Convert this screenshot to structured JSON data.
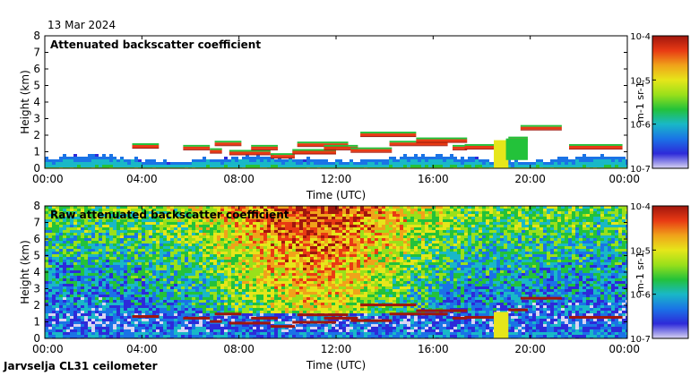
{
  "date": "13 Mar 2024",
  "footer": "Jarvselja CL31 ceilometer",
  "chart_data": [
    {
      "type": "heatmap",
      "title": "Attenuated backscatter coefficient",
      "xlabel": "Time (UTC)",
      "ylabel": "Height (km)",
      "xlim": [
        0,
        24
      ],
      "ylim": [
        0,
        8
      ],
      "xticks": [
        "00:00",
        "04:00",
        "08:00",
        "12:00",
        "16:00",
        "20:00",
        "00:00"
      ],
      "yticks": [
        "0",
        "1",
        "2",
        "3",
        "4",
        "5",
        "6",
        "7",
        "8"
      ],
      "colorbar": {
        "label": "m-1 sr-1",
        "ticks": [
          "10-4",
          "10-5",
          "10-6",
          "10-7"
        ],
        "range_log10": [
          -7,
          -4
        ]
      },
      "layers": [
        {
          "t0": 3.6,
          "t1": 4.7,
          "h": 1.35
        },
        {
          "t0": 5.7,
          "t1": 6.8,
          "h": 1.25
        },
        {
          "t0": 6.8,
          "t1": 7.3,
          "h": 1.05
        },
        {
          "t0": 7.0,
          "t1": 8.1,
          "h": 1.5
        },
        {
          "t0": 7.6,
          "t1": 9.3,
          "h": 0.95
        },
        {
          "t0": 8.5,
          "t1": 9.6,
          "h": 1.25
        },
        {
          "t0": 9.3,
          "t1": 10.3,
          "h": 0.75
        },
        {
          "t0": 10.2,
          "t1": 12.0,
          "h": 1.0
        },
        {
          "t0": 10.4,
          "t1": 12.5,
          "h": 1.45
        },
        {
          "t0": 11.5,
          "t1": 12.9,
          "h": 1.25
        },
        {
          "t0": 12.6,
          "t1": 14.3,
          "h": 1.1
        },
        {
          "t0": 13.0,
          "t1": 15.3,
          "h": 2.05
        },
        {
          "t0": 14.2,
          "t1": 16.6,
          "h": 1.5
        },
        {
          "t0": 15.3,
          "t1": 17.4,
          "h": 1.7
        },
        {
          "t0": 16.8,
          "t1": 17.4,
          "h": 1.25
        },
        {
          "t0": 17.3,
          "t1": 19.1,
          "h": 1.3
        },
        {
          "t0": 19.1,
          "t1": 19.9,
          "h": 1.75
        },
        {
          "t0": 19.6,
          "t1": 21.3,
          "h": 2.45
        },
        {
          "t0": 21.6,
          "t1": 23.8,
          "h": 1.3
        }
      ]
    },
    {
      "type": "heatmap",
      "title": "Raw attenuated backscatter coefficient",
      "xlabel": "Time (UTC)",
      "ylabel": "Height (km)",
      "xlim": [
        0,
        24
      ],
      "ylim": [
        0,
        8
      ],
      "xticks": [
        "00:00",
        "04:00",
        "08:00",
        "12:00",
        "16:00",
        "20:00",
        "00:00"
      ],
      "yticks": [
        "0",
        "1",
        "2",
        "3",
        "4",
        "5",
        "6",
        "7",
        "8"
      ],
      "colorbar": {
        "label": "m-1 sr-1",
        "ticks": [
          "10-4",
          "10-5",
          "10-6",
          "10-7"
        ],
        "range_log10": [
          -7,
          -4
        ]
      }
    }
  ]
}
